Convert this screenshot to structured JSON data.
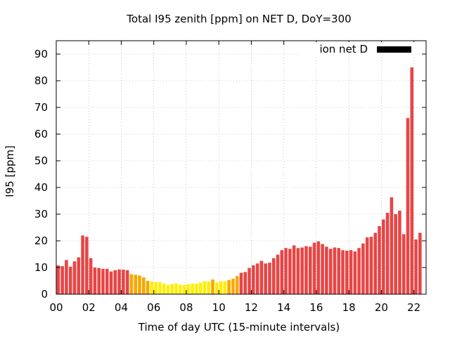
{
  "chart_data": {
    "type": "bar",
    "title": "Total I95 zenith [ppm] on NET D, DoY=300",
    "xlabel": "Time of day UTC (15-minute intervals)",
    "ylabel": "I95 [ppm]",
    "ylim": [
      0,
      95
    ],
    "xlim": [
      0,
      22.75
    ],
    "grid": true,
    "legend_placement": "top-right",
    "legend": [
      {
        "label": "ion net D",
        "color": "#000000"
      }
    ],
    "x_ticks": [
      "00",
      "02",
      "04",
      "06",
      "08",
      "10",
      "12",
      "14",
      "16",
      "18",
      "20",
      "22"
    ],
    "x_tick_values": [
      0,
      2,
      4,
      6,
      8,
      10,
      12,
      14,
      16,
      18,
      20,
      22
    ],
    "y_ticks": [
      0,
      10,
      20,
      30,
      40,
      50,
      60,
      70,
      80,
      90
    ],
    "bar_interval_hours": 0.25,
    "x_start_hours": 0,
    "colors": {
      "red": "#e84545",
      "orange": "#f7a800",
      "yellow": "#ffee00",
      "legend": "#000000"
    },
    "values": [
      10.8,
      10.5,
      12.8,
      10.3,
      12.3,
      13.8,
      22.0,
      21.5,
      13.5,
      10.0,
      9.8,
      9.5,
      9.5,
      8.5,
      9.0,
      9.3,
      9.2,
      9.0,
      7.5,
      7.3,
      7.0,
      6.3,
      5.0,
      4.8,
      4.5,
      4.5,
      4.0,
      3.5,
      3.8,
      4.0,
      3.5,
      3.5,
      3.8,
      4.0,
      4.0,
      4.3,
      4.8,
      4.8,
      5.5,
      4.3,
      4.8,
      4.8,
      5.3,
      5.8,
      6.8,
      8.0,
      8.3,
      9.8,
      10.8,
      11.5,
      12.5,
      11.5,
      11.8,
      13.5,
      14.8,
      16.5,
      17.3,
      17.0,
      18.3,
      17.3,
      17.5,
      18.0,
      17.8,
      19.3,
      19.8,
      18.8,
      17.8,
      17.0,
      17.5,
      17.3,
      16.5,
      16.3,
      16.5,
      16.0,
      17.3,
      19.0,
      21.3,
      21.5,
      23.0,
      25.5,
      28.0,
      30.5,
      36.3,
      30.0,
      31.3,
      22.5,
      66.0,
      85.0,
      20.5,
      23.0
    ]
  }
}
